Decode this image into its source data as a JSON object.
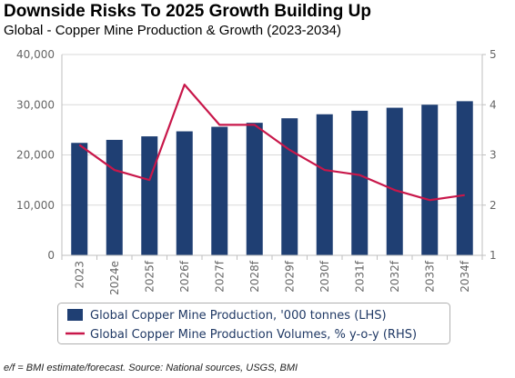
{
  "title": "Downside Risks To 2025 Growth Building Up",
  "subtitle": "Global - Copper Mine Production & Growth (2023-2034)",
  "footnote": "e/f = BMI estimate/forecast. Source: National sources, USGS, BMI",
  "colors": {
    "bar": "#1f3f73",
    "line": "#c8174a",
    "grid": "#d9d9d9",
    "axis": "#bfbfbf"
  },
  "chart_data": {
    "type": "bar",
    "categories": [
      "2023",
      "2024e",
      "2025f",
      "2026f",
      "2027f",
      "2028f",
      "2029f",
      "2030f",
      "2031f",
      "2032f",
      "2033f",
      "2034f"
    ],
    "series": [
      {
        "name": "Global Copper Mine Production, '000 tonnes (LHS)",
        "type": "bar",
        "axis": "left",
        "values": [
          22400,
          23000,
          23700,
          24700,
          25600,
          26400,
          27300,
          28100,
          28800,
          29400,
          30000,
          30700
        ]
      },
      {
        "name": "Global Copper Mine Production Volumes, % y-o-y (RHS)",
        "type": "line",
        "axis": "right",
        "values": [
          3.2,
          2.7,
          2.5,
          4.4,
          3.6,
          3.6,
          3.1,
          2.7,
          2.6,
          2.3,
          2.1,
          2.2
        ]
      }
    ],
    "y_left": {
      "min": 0,
      "max": 40000,
      "ticks": [
        "0",
        "10,000",
        "20,000",
        "30,000",
        "40,000"
      ]
    },
    "y_right": {
      "min": 1,
      "max": 5,
      "ticks": [
        "1",
        "2",
        "3",
        "4",
        "5"
      ]
    },
    "grid": true,
    "legend_position": "bottom"
  }
}
